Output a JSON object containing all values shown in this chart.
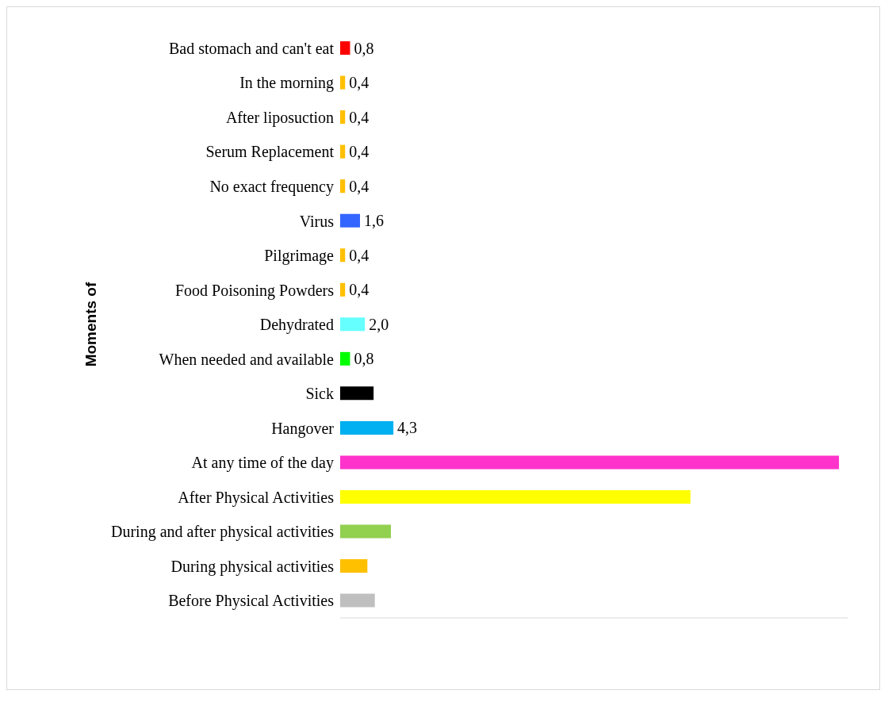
{
  "chart_data": {
    "type": "bar",
    "orientation": "horizontal",
    "ylabel": "Moments of",
    "categories": [
      "Bad stomach and can't eat",
      "In the morning",
      "After liposuction",
      "Serum Replacement",
      "No exact frequency",
      "Virus",
      "Pilgrimage",
      "Food Poisoning Powders",
      "Dehydrated",
      "When needed and available",
      "Sick",
      "Hangover",
      "At any time of the day",
      "After Physical Activities",
      "During and after physical activities",
      "During physical activities",
      "Before Physical Activities"
    ],
    "values": [
      0.8,
      0.4,
      0.4,
      0.4,
      0.4,
      1.6,
      0.4,
      0.4,
      2.0,
      0.8,
      2.7,
      4.3,
      40.3,
      28.3,
      4.1,
      2.2,
      2.8
    ],
    "value_labels": [
      "0,8",
      "0,4",
      "0,4",
      "0,4",
      "0,4",
      "1,6",
      "0,4",
      "0,4",
      "2,0",
      "0,8",
      null,
      "4,3",
      null,
      null,
      null,
      null,
      null
    ],
    "colors": [
      "#ff0000",
      "#ffc000",
      "#ffc000",
      "#ffc000",
      "#ffc000",
      "#3366ff",
      "#ffc000",
      "#ffc000",
      "#66ffff",
      "#00ff00",
      "#000000",
      "#00b0f0",
      "#ff33cc",
      "#ffff00",
      "#92d050",
      "#ffc000",
      "#bfbfbf"
    ],
    "xlim": [
      0,
      41
    ],
    "tick_labels": "y"
  }
}
